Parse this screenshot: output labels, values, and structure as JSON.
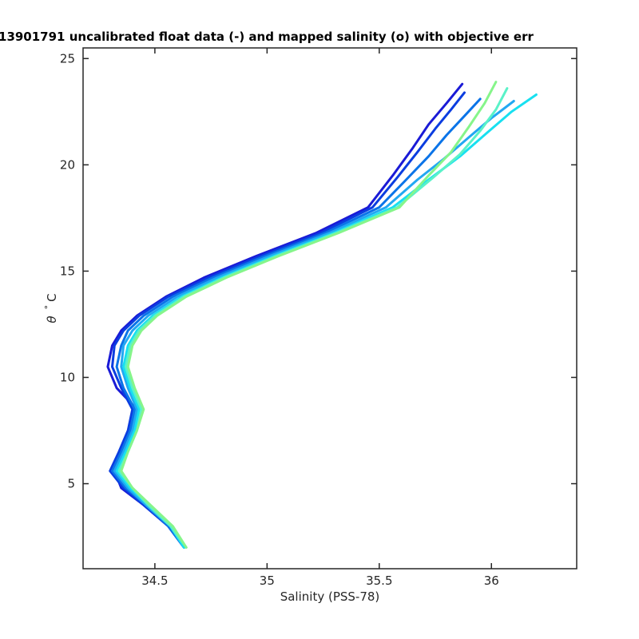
{
  "chart_data": {
    "type": "line",
    "title": "3901791 uncalibrated float data (-) and mapped salinity (o) with objective err",
    "title_prefix": "1",
    "xlabel": "Salinity (PSS-78)",
    "ylabel_symbol": "θ",
    "ylabel_degree": "°",
    "ylabel_unit": "C",
    "xlim": [
      34.18,
      36.38
    ],
    "ylim": [
      1.0,
      25.5
    ],
    "xticks": [
      34.5,
      35,
      35.5,
      36
    ],
    "xtick_labels": [
      "34.5",
      "35",
      "35.5",
      "36"
    ],
    "yticks": [
      5,
      10,
      15,
      20,
      25
    ],
    "ytick_labels": [
      "5",
      "10",
      "15",
      "20",
      "25"
    ],
    "grid": false,
    "colormap": "jet (blue → cyan → green, older to newer profiles)",
    "series": [
      {
        "color": "#1a1ad6",
        "x": [
          34.63,
          34.56,
          34.45,
          34.35,
          34.32,
          34.36,
          34.4,
          34.42,
          34.33,
          34.29,
          34.31,
          34.35,
          34.42,
          34.55,
          34.72,
          34.95,
          35.22,
          35.45,
          35.56,
          35.65,
          35.72,
          35.8,
          35.87
        ],
        "y": [
          2.0,
          3.0,
          4.0,
          4.8,
          5.6,
          6.5,
          7.5,
          8.5,
          9.5,
          10.5,
          11.5,
          12.2,
          12.9,
          13.8,
          14.7,
          15.7,
          16.8,
          18.0,
          19.5,
          20.8,
          21.9,
          22.9,
          23.8
        ]
      },
      {
        "color": "#0b3de0",
        "x": [
          34.63,
          34.56,
          34.45,
          34.36,
          34.3,
          34.34,
          34.38,
          34.4,
          34.35,
          34.31,
          34.32,
          34.36,
          34.43,
          34.56,
          34.74,
          34.97,
          35.24,
          35.47,
          35.58,
          35.67,
          35.75,
          35.82,
          35.88
        ],
        "y": [
          2.0,
          3.0,
          4.0,
          4.8,
          5.6,
          6.5,
          7.5,
          8.5,
          9.5,
          10.5,
          11.5,
          12.2,
          12.9,
          13.8,
          14.7,
          15.7,
          16.8,
          18.0,
          19.4,
          20.6,
          21.7,
          22.6,
          23.4
        ]
      },
      {
        "color": "#0b74e8",
        "x": [
          34.63,
          34.56,
          34.46,
          34.37,
          34.31,
          34.35,
          34.39,
          34.41,
          34.36,
          34.33,
          34.35,
          34.38,
          34.45,
          34.58,
          34.76,
          34.99,
          35.26,
          35.5,
          35.62,
          35.72,
          35.8,
          35.88,
          35.95
        ],
        "y": [
          2.0,
          3.0,
          4.0,
          4.8,
          5.6,
          6.5,
          7.5,
          8.5,
          9.5,
          10.5,
          11.5,
          12.2,
          12.9,
          13.8,
          14.7,
          15.7,
          16.8,
          18.0,
          19.3,
          20.4,
          21.4,
          22.3,
          23.1
        ]
      },
      {
        "color": "#22a8f2",
        "x": [
          34.63,
          34.57,
          34.46,
          34.38,
          34.32,
          34.36,
          34.4,
          34.42,
          34.38,
          34.35,
          34.36,
          34.4,
          34.47,
          34.6,
          34.78,
          35.01,
          35.28,
          35.53,
          35.67,
          35.79,
          35.9,
          36.0,
          36.1
        ],
        "y": [
          2.0,
          3.0,
          4.0,
          4.8,
          5.6,
          6.5,
          7.5,
          8.5,
          9.5,
          10.5,
          11.5,
          12.2,
          12.9,
          13.8,
          14.7,
          15.7,
          16.8,
          18.0,
          19.3,
          20.3,
          21.3,
          22.2,
          23.0
        ]
      },
      {
        "color": "#18e0f0",
        "x": [
          34.63,
          34.57,
          34.47,
          34.39,
          34.33,
          34.37,
          34.41,
          34.43,
          34.39,
          34.36,
          34.38,
          34.42,
          34.49,
          34.62,
          34.8,
          35.03,
          35.3,
          35.56,
          35.72,
          35.86,
          35.98,
          36.09,
          36.2
        ],
        "y": [
          2.0,
          3.0,
          4.0,
          4.8,
          5.6,
          6.5,
          7.5,
          8.5,
          9.5,
          10.5,
          11.5,
          12.2,
          12.9,
          13.8,
          14.7,
          15.7,
          16.8,
          18.0,
          19.3,
          20.4,
          21.5,
          22.5,
          23.3
        ]
      },
      {
        "color": "#5af2c8",
        "x": [
          34.64,
          34.57,
          34.47,
          34.4,
          34.34,
          34.38,
          34.42,
          34.44,
          34.4,
          34.37,
          34.39,
          34.43,
          34.5,
          34.63,
          34.81,
          35.04,
          35.31,
          35.58,
          35.74,
          35.86,
          35.95,
          36.02,
          36.07
        ],
        "y": [
          2.0,
          3.0,
          4.0,
          4.8,
          5.6,
          6.5,
          7.5,
          8.5,
          9.5,
          10.5,
          11.5,
          12.2,
          12.9,
          13.8,
          14.7,
          15.7,
          16.8,
          18.0,
          19.4,
          20.5,
          21.6,
          22.6,
          23.6
        ]
      },
      {
        "color": "#86f58a",
        "x": [
          34.64,
          34.58,
          34.48,
          34.4,
          34.35,
          34.38,
          34.42,
          34.45,
          34.41,
          34.38,
          34.4,
          34.44,
          34.51,
          34.64,
          34.82,
          35.05,
          35.32,
          35.59,
          35.72,
          35.82,
          35.9,
          35.97,
          36.02
        ],
        "y": [
          2.0,
          3.0,
          4.0,
          4.8,
          5.6,
          6.5,
          7.5,
          8.5,
          9.5,
          10.5,
          11.5,
          12.2,
          12.9,
          13.8,
          14.7,
          15.7,
          16.8,
          18.0,
          19.5,
          20.6,
          21.8,
          22.9,
          23.9
        ]
      }
    ]
  }
}
